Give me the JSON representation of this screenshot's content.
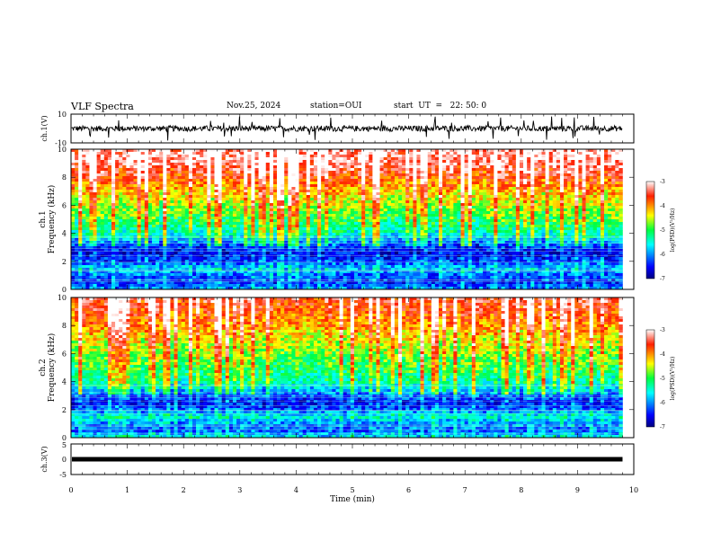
{
  "header": {
    "title": "VLF Spectra",
    "date": "Nov.25, 2024",
    "station": "station=OUI",
    "start": "start  UT  =   22: 50: 0"
  },
  "chart_data": [
    {
      "type": "line",
      "name": "ch1-waveform",
      "ylabel": "ch.1(V)",
      "ylim": [
        -10,
        10
      ],
      "yticks": [
        "10",
        "-10"
      ],
      "xlim": [
        0,
        10
      ],
      "baseline": 0,
      "noise_amplitude": 2,
      "data_end_min": 9.8
    },
    {
      "type": "heatmap",
      "name": "ch1-spectrogram",
      "ylabel_line1": "ch.1",
      "ylabel_line2": "Frequency (kHz)",
      "ylim": [
        0,
        10
      ],
      "yticks": [
        "0",
        "2",
        "4",
        "6",
        "8",
        "10"
      ],
      "xlim": [
        0,
        10
      ],
      "data_end_min": 9.8,
      "colorbar": {
        "label": "log(PSD)(V²/Hz)",
        "range": [
          -7,
          -3
        ],
        "ticks": [
          "-3",
          "-4",
          "-5",
          "-6",
          "-7"
        ]
      },
      "profile": [
        {
          "f": 0.0,
          "v": -6.0
        },
        {
          "f": 0.5,
          "v": -6.4
        },
        {
          "f": 1.0,
          "v": -6.2
        },
        {
          "f": 1.5,
          "v": -5.8
        },
        {
          "f": 2.0,
          "v": -6.3
        },
        {
          "f": 2.5,
          "v": -6.6
        },
        {
          "f": 3.0,
          "v": -6.4
        },
        {
          "f": 3.5,
          "v": -5.9
        },
        {
          "f": 4.0,
          "v": -5.4
        },
        {
          "f": 5.0,
          "v": -5.0
        },
        {
          "f": 6.0,
          "v": -4.6
        },
        {
          "f": 7.0,
          "v": -4.2
        },
        {
          "f": 8.0,
          "v": -3.7
        },
        {
          "f": 9.0,
          "v": -3.3
        },
        {
          "f": 10.0,
          "v": -3.2
        }
      ]
    },
    {
      "type": "heatmap",
      "name": "ch2-spectrogram",
      "ylabel_line1": "ch.2",
      "ylabel_line2": "Frequency (kHz)",
      "ylim": [
        0,
        10
      ],
      "yticks": [
        "0",
        "2",
        "4",
        "6",
        "8",
        "10"
      ],
      "xlim": [
        0,
        10
      ],
      "data_end_min": 9.8,
      "colorbar": {
        "label": "log(PSD)(V²/Hz)",
        "range": [
          -7,
          -3
        ],
        "ticks": [
          "-3",
          "-4",
          "-5",
          "-6",
          "-7"
        ]
      },
      "profile": [
        {
          "f": 0.0,
          "v": -5.6
        },
        {
          "f": 0.5,
          "v": -6.2
        },
        {
          "f": 1.0,
          "v": -6.0
        },
        {
          "f": 1.5,
          "v": -5.5
        },
        {
          "f": 2.0,
          "v": -6.2
        },
        {
          "f": 2.5,
          "v": -6.5
        },
        {
          "f": 3.0,
          "v": -6.2
        },
        {
          "f": 3.5,
          "v": -5.7
        },
        {
          "f": 4.0,
          "v": -5.3
        },
        {
          "f": 5.0,
          "v": -5.0
        },
        {
          "f": 6.0,
          "v": -4.7
        },
        {
          "f": 7.0,
          "v": -4.4
        },
        {
          "f": 8.0,
          "v": -4.0
        },
        {
          "f": 9.0,
          "v": -3.7
        },
        {
          "f": 10.0,
          "v": -3.5
        }
      ]
    },
    {
      "type": "line",
      "name": "ch3-waveform",
      "ylabel": "ch.3(V)",
      "ylim": [
        -5,
        5
      ],
      "yticks": [
        "5",
        "0",
        "-5"
      ],
      "xlim": [
        0,
        10
      ],
      "xlabel": "Time (min)",
      "xticks": [
        "0",
        "1",
        "2",
        "3",
        "4",
        "5",
        "6",
        "7",
        "8",
        "9",
        "10"
      ],
      "baseline": 0,
      "data_end_min": 9.8
    }
  ]
}
